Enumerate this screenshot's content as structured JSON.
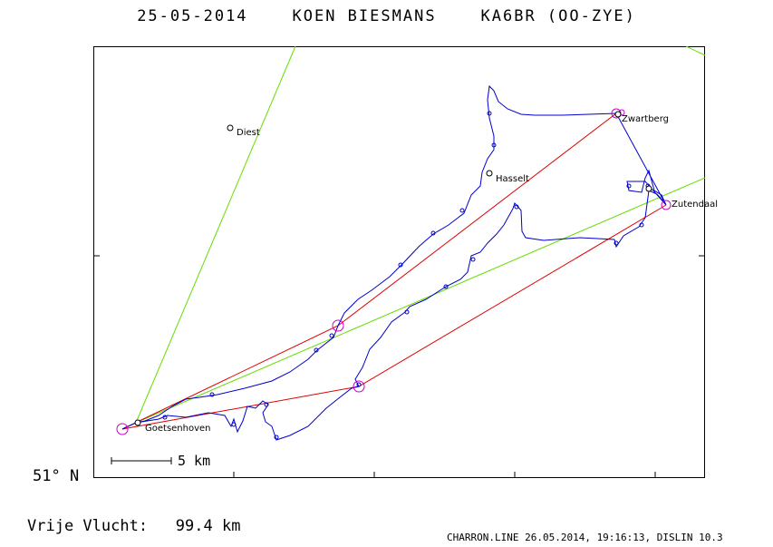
{
  "header": {
    "date": "25-05-2014",
    "pilot": "KOEN BIESMANS",
    "glider": "KA6BR (OO-ZYE)"
  },
  "map": {
    "latitude_label": "51° N",
    "scale_label": "5 km",
    "places": [
      {
        "name": "Diest"
      },
      {
        "name": "Hasselt"
      },
      {
        "name": "Zwartberg"
      },
      {
        "name": "Zutendaal"
      },
      {
        "name": "Goetsenhoven"
      }
    ],
    "colors": {
      "track": "#0000cc",
      "task_legs": "#dd0000",
      "sector_lines": "#66dd00",
      "turnpoints": "#cc00cc"
    }
  },
  "summary": {
    "label": "Vrije Vlucht:",
    "distance": "99.4 km"
  },
  "footer": {
    "text": "CHARRON.LINE 26.05.2014, 19:16:13, DISLIN 10.3"
  }
}
